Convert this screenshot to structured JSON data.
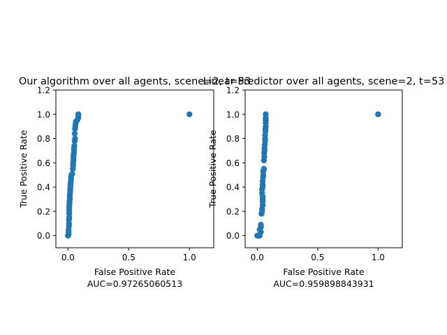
{
  "chart_data": [
    {
      "type": "scatter",
      "title": "Our algorithm over all agents, scene=2,  t=53",
      "xlabel": "False Positive Rate",
      "ylabel": "True Positive Rate",
      "auc_label": "AUC=0.97265060513",
      "xlim": [
        -0.1,
        1.2
      ],
      "ylim": [
        -0.1,
        1.2
      ],
      "xticks": [
        "0.0",
        "0.5",
        "1.0"
      ],
      "yticks": [
        "0.0",
        "0.2",
        "0.4",
        "0.6",
        "0.8",
        "1.0",
        "1.2"
      ],
      "xtick_values": [
        0.0,
        0.5,
        1.0
      ],
      "ytick_values": [
        0.0,
        0.2,
        0.4,
        0.6,
        0.8,
        1.0,
        1.2
      ],
      "marker_color": "#1f77b4",
      "points": [
        [
          0.0,
          0.0
        ],
        [
          0.005,
          0.01
        ],
        [
          0.005,
          0.03
        ],
        [
          0.005,
          0.05
        ],
        [
          0.008,
          0.08
        ],
        [
          0.008,
          0.1
        ],
        [
          0.008,
          0.13
        ],
        [
          0.01,
          0.15
        ],
        [
          0.01,
          0.18
        ],
        [
          0.01,
          0.2
        ],
        [
          0.01,
          0.22
        ],
        [
          0.01,
          0.24
        ],
        [
          0.012,
          0.26
        ],
        [
          0.012,
          0.28
        ],
        [
          0.015,
          0.3
        ],
        [
          0.015,
          0.32
        ],
        [
          0.015,
          0.34
        ],
        [
          0.018,
          0.36
        ],
        [
          0.018,
          0.38
        ],
        [
          0.02,
          0.4
        ],
        [
          0.02,
          0.42
        ],
        [
          0.022,
          0.44
        ],
        [
          0.025,
          0.46
        ],
        [
          0.025,
          0.48
        ],
        [
          0.028,
          0.5
        ],
        [
          0.035,
          0.51
        ],
        [
          0.04,
          0.55
        ],
        [
          0.042,
          0.58
        ],
        [
          0.042,
          0.6
        ],
        [
          0.045,
          0.62
        ],
        [
          0.045,
          0.64
        ],
        [
          0.045,
          0.66
        ],
        [
          0.048,
          0.68
        ],
        [
          0.05,
          0.7
        ],
        [
          0.05,
          0.72
        ],
        [
          0.052,
          0.74
        ],
        [
          0.055,
          0.78
        ],
        [
          0.058,
          0.8
        ],
        [
          0.055,
          0.84
        ],
        [
          0.058,
          0.88
        ],
        [
          0.06,
          0.9
        ],
        [
          0.062,
          0.92
        ],
        [
          0.065,
          0.94
        ],
        [
          0.075,
          0.95
        ],
        [
          0.085,
          0.97
        ],
        [
          0.085,
          0.99
        ],
        [
          0.085,
          1.0
        ],
        [
          1.0,
          1.0
        ]
      ]
    },
    {
      "type": "scatter",
      "title": "Linear Predictor over all agents, scene=2,  t=53",
      "xlabel": "False Positive Rate",
      "ylabel": "True Positive Rate",
      "auc_label": "AUC=0.959898843931",
      "xlim": [
        -0.1,
        1.2
      ],
      "ylim": [
        -0.1,
        1.2
      ],
      "xticks": [
        "0.0",
        "0.5",
        "1.0"
      ],
      "yticks": [
        "0.0",
        "0.2",
        "0.4",
        "0.6",
        "0.8",
        "1.0",
        "1.2"
      ],
      "xtick_values": [
        0.0,
        0.5,
        1.0
      ],
      "ytick_values": [
        0.0,
        0.2,
        0.4,
        0.6,
        0.8,
        1.0,
        1.2
      ],
      "marker_color": "#1f77b4",
      "points": [
        [
          0.0,
          0.0
        ],
        [
          0.01,
          0.0
        ],
        [
          0.02,
          0.0
        ],
        [
          0.03,
          0.03
        ],
        [
          0.02,
          0.05
        ],
        [
          0.03,
          0.07
        ],
        [
          0.03,
          0.09
        ],
        [
          0.035,
          0.18
        ],
        [
          0.04,
          0.2
        ],
        [
          0.04,
          0.22
        ],
        [
          0.045,
          0.25
        ],
        [
          0.045,
          0.28
        ],
        [
          0.045,
          0.3
        ],
        [
          0.045,
          0.32
        ],
        [
          0.04,
          0.35
        ],
        [
          0.04,
          0.38
        ],
        [
          0.045,
          0.4
        ],
        [
          0.045,
          0.42
        ],
        [
          0.045,
          0.45
        ],
        [
          0.048,
          0.48
        ],
        [
          0.05,
          0.5
        ],
        [
          0.05,
          0.53
        ],
        [
          0.055,
          0.55
        ],
        [
          0.055,
          0.62
        ],
        [
          0.058,
          0.65
        ],
        [
          0.058,
          0.68
        ],
        [
          0.06,
          0.7
        ],
        [
          0.06,
          0.72
        ],
        [
          0.062,
          0.75
        ],
        [
          0.065,
          0.78
        ],
        [
          0.065,
          0.8
        ],
        [
          0.065,
          0.83
        ],
        [
          0.068,
          0.86
        ],
        [
          0.068,
          0.88
        ],
        [
          0.07,
          0.9
        ],
        [
          0.07,
          0.93
        ],
        [
          0.07,
          0.95
        ],
        [
          0.07,
          0.97
        ],
        [
          0.07,
          1.0
        ],
        [
          1.0,
          1.0
        ]
      ]
    }
  ]
}
